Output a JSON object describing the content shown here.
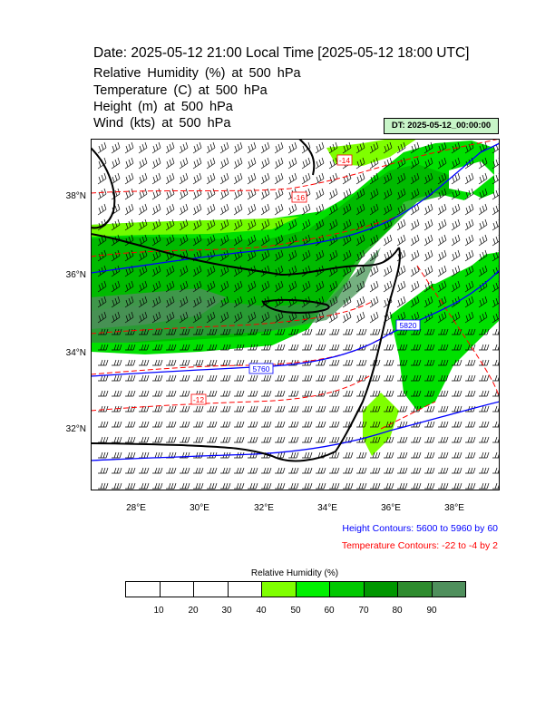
{
  "header": {
    "title": "Date: 2025-05-12  21:00 Local Time [2025-05-12  18:00 UTC]",
    "vars": [
      "Relative Humidity   (%)     at   500 hPa",
      "Temperature   (C)     at   500 hPa",
      "Height   (m)     at   500 hPa",
      "Wind   (kts)     at   500 hPa"
    ],
    "dt_label": "DT: 2025-05-12_00:00:00"
  },
  "map": {
    "lat_labels": [
      "38°N",
      "36°N",
      "34°N",
      "32°N"
    ],
    "lon_labels": [
      "28°E",
      "30°E",
      "32°E",
      "34°E",
      "36°E",
      "38°E"
    ],
    "height_contour_labels": [
      "5760",
      "5820",
      "5640"
    ],
    "temp_contour_labels": [
      "-14",
      "-16",
      "-12",
      "-12",
      "-12",
      "-8",
      "-4"
    ],
    "colors": {
      "coast": "#000000",
      "height_contours": "#0000ff",
      "temp_contours": "#ff0000",
      "barbs": "#000000"
    }
  },
  "legend": {
    "height_contours": "Height Contours: 5600 to 5960 by 60",
    "temp_contours": "Temperature Contours: -22 to -4 by 2"
  },
  "colorbar": {
    "title": "Relative Humidity  (%)",
    "labels": [
      "10",
      "20",
      "30",
      "40",
      "50",
      "60",
      "70",
      "80",
      "90"
    ],
    "colors": [
      "#ffffff",
      "#ffffff",
      "#ffffff",
      "#ffffff",
      "#7fff00",
      "#00f000",
      "#00c800",
      "#009600",
      "#2e8b2e",
      "#4f8f5c"
    ]
  }
}
